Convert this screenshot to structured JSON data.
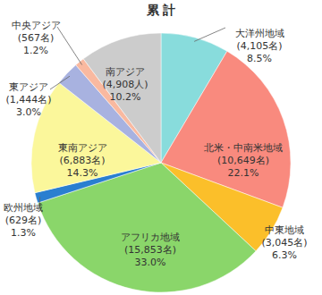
{
  "chart_data": {
    "type": "pie",
    "title": "累 計",
    "categories": [
      "大洋州地域",
      "北米・中南米地域",
      "中東地域",
      "アフリカ地域",
      "欧州地域",
      "東南アジア",
      "東アジア",
      "中央アジア",
      "南アジア"
    ],
    "values": [
      8.5,
      22.1,
      6.3,
      33.0,
      1.3,
      14.3,
      3.0,
      1.2,
      10.2
    ],
    "value_labels": [
      "8.5%",
      "22.1%",
      "6.3%",
      "33.0%",
      "1.3%",
      "14.3%",
      "3.0%",
      "1.2%",
      "10.2%"
    ],
    "count_labels": [
      "(4,105名)",
      "(10,649名)",
      "(3,045名)",
      "(15,853名)",
      "(629名)",
      "(6,883名)",
      "(1,444名)",
      "(567名)",
      "(4,908人)"
    ],
    "colors": [
      "#88dcdc",
      "#f98a7e",
      "#fbbf2a",
      "#8ad66a",
      "#2a7fd0",
      "#fbf79b",
      "#a8b2e0",
      "#f9b9a0",
      "#cccccc"
    ],
    "data_labels": true
  }
}
